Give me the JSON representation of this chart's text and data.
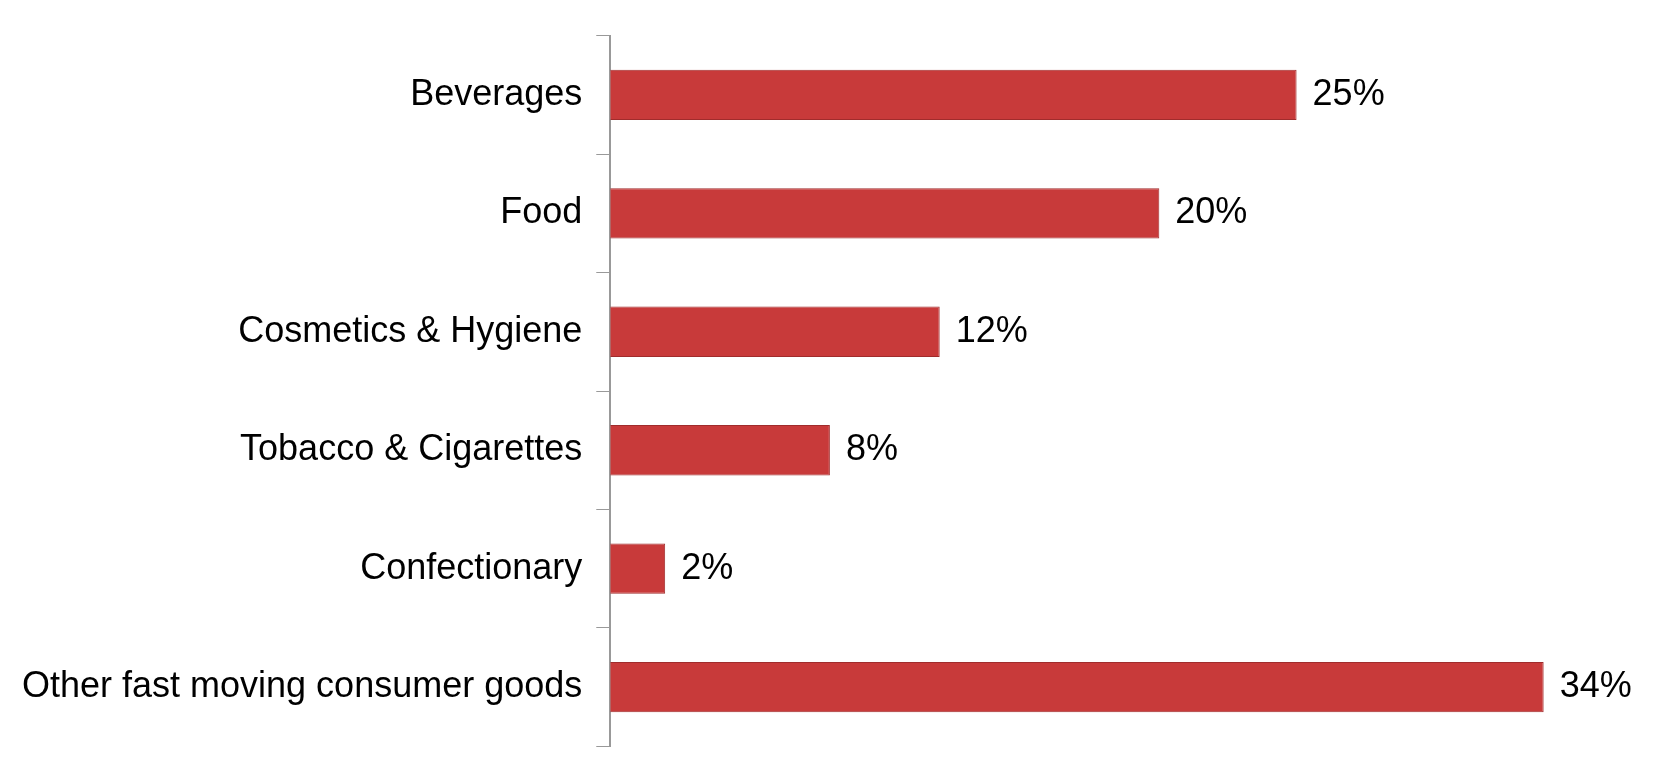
{
  "chart_data": {
    "type": "bar",
    "orientation": "horizontal",
    "categories": [
      "Beverages",
      "Food",
      "Cosmetics & Hygiene",
      "Tobacco & Cigarettes",
      "Confectionary",
      "Other fast moving consumer goods"
    ],
    "values": [
      25,
      20,
      12,
      8,
      2,
      34
    ],
    "value_labels": [
      "25%",
      "20%",
      "12%",
      "8%",
      "2%",
      "34%"
    ],
    "color": "#c83a3a"
  }
}
